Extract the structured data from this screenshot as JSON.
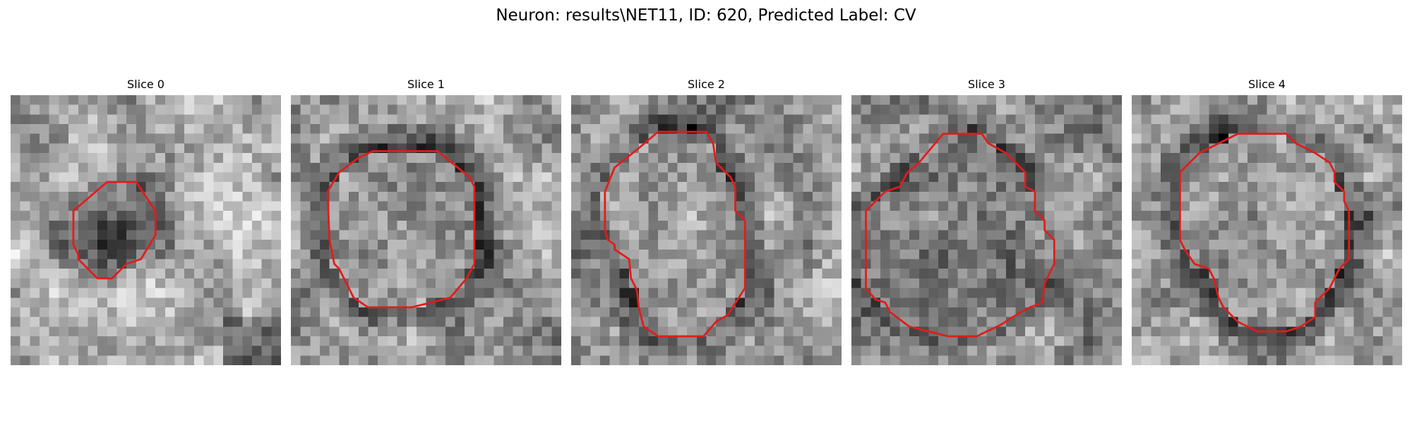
{
  "figure": {
    "title": "Neuron: results\\NET11, ID: 620, Predicted Label: CV",
    "outline_color": "#e31b1b",
    "slices": [
      {
        "label": "Slice 0",
        "seed": 11,
        "background": "bright-with-dark-blob",
        "contour": [
          [
            10,
            9
          ],
          [
            13,
            9
          ],
          [
            15,
            12
          ],
          [
            15,
            14.5
          ],
          [
            13.5,
            17
          ],
          [
            12,
            17.5
          ],
          [
            10.5,
            19
          ],
          [
            9,
            19
          ],
          [
            7,
            17
          ],
          [
            7,
            16.5
          ],
          [
            6.5,
            15.5
          ],
          [
            6.5,
            12
          ]
        ]
      },
      {
        "label": "Slice 1",
        "seed": 23,
        "background": "dark-ring",
        "contour": [
          [
            8.5,
            5.8
          ],
          [
            15.2,
            5.8
          ],
          [
            18.5,
            8.5
          ],
          [
            19,
            9.5
          ],
          [
            19,
            17.5
          ],
          [
            18.2,
            19
          ],
          [
            16.5,
            21
          ],
          [
            12.5,
            22
          ],
          [
            8,
            22
          ],
          [
            6.5,
            21
          ],
          [
            5,
            18
          ],
          [
            4.5,
            17.5
          ],
          [
            4,
            15
          ],
          [
            3.8,
            10
          ],
          [
            5,
            8
          ],
          [
            7,
            6.5
          ]
        ]
      },
      {
        "label": "Slice 2",
        "seed": 37,
        "background": "dark-ring",
        "contour": [
          [
            9,
            3.8
          ],
          [
            14,
            3.8
          ],
          [
            14.7,
            5
          ],
          [
            15,
            7
          ],
          [
            16.5,
            8.5
          ],
          [
            17,
            9.5
          ],
          [
            17,
            12
          ],
          [
            18,
            13
          ],
          [
            18,
            20
          ],
          [
            16.2,
            22.8
          ],
          [
            15,
            23.5
          ],
          [
            13.7,
            25
          ],
          [
            9,
            25
          ],
          [
            7.5,
            24
          ],
          [
            7,
            22
          ],
          [
            6.8,
            20.2
          ],
          [
            6.2,
            19
          ],
          [
            6,
            17
          ],
          [
            4.5,
            16
          ],
          [
            4.5,
            15.5
          ],
          [
            3.8,
            15
          ],
          [
            3.5,
            14
          ],
          [
            3.5,
            10
          ],
          [
            4.5,
            7.5
          ],
          [
            6,
            6.3
          ],
          [
            7,
            5.5
          ]
        ]
      },
      {
        "label": "Slice 3",
        "seed": 53,
        "background": "mottled",
        "contour": [
          [
            9.5,
            4
          ],
          [
            13.5,
            4
          ],
          [
            14.2,
            5
          ],
          [
            16,
            6
          ],
          [
            18,
            8
          ],
          [
            18,
            9.5
          ],
          [
            19,
            10
          ],
          [
            19,
            12
          ],
          [
            20,
            13
          ],
          [
            20,
            14
          ],
          [
            21,
            15
          ],
          [
            21,
            17.5
          ],
          [
            20.5,
            18.5
          ],
          [
            20,
            19.5
          ],
          [
            19.8,
            21.5
          ],
          [
            18.5,
            22
          ],
          [
            17.5,
            22.5
          ],
          [
            15.5,
            23.8
          ],
          [
            14,
            24.5
          ],
          [
            13,
            25
          ],
          [
            10,
            25
          ],
          [
            8,
            24.5
          ],
          [
            6,
            24
          ],
          [
            4,
            22.5
          ],
          [
            3.5,
            21.5
          ],
          [
            2.5,
            21.2
          ],
          [
            1.5,
            20
          ],
          [
            1.5,
            12
          ],
          [
            2.5,
            11
          ],
          [
            3.5,
            10
          ],
          [
            5,
            9.5
          ],
          [
            5.8,
            8
          ],
          [
            7,
            7
          ]
        ]
      },
      {
        "label": "Slice 4",
        "seed": 71,
        "background": "dark-ring",
        "contour": [
          [
            11,
            4
          ],
          [
            16,
            4
          ],
          [
            17,
            5
          ],
          [
            19,
            6
          ],
          [
            20.5,
            7
          ],
          [
            21,
            8
          ],
          [
            21,
            9
          ],
          [
            22,
            10
          ],
          [
            22,
            11
          ],
          [
            22.5,
            12
          ],
          [
            22.5,
            17
          ],
          [
            21.5,
            18
          ],
          [
            21,
            19
          ],
          [
            20.5,
            20
          ],
          [
            20,
            20.5
          ],
          [
            19,
            21.5
          ],
          [
            19,
            23
          ],
          [
            17.5,
            24
          ],
          [
            16,
            24.5
          ],
          [
            13,
            24.5
          ],
          [
            11,
            23.5
          ],
          [
            9.5,
            22
          ],
          [
            9,
            21
          ],
          [
            8.5,
            19
          ],
          [
            8,
            18
          ],
          [
            6.5,
            17.5
          ],
          [
            5.5,
            16
          ],
          [
            5,
            15
          ],
          [
            5,
            8
          ],
          [
            6,
            7
          ],
          [
            7,
            6
          ],
          [
            9,
            5
          ]
        ]
      }
    ]
  }
}
